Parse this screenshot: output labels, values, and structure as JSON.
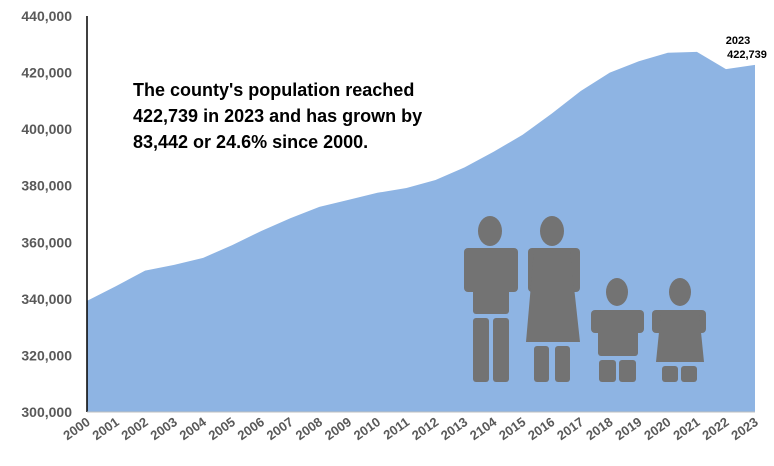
{
  "chart_data": {
    "type": "area",
    "x": [
      "2000",
      "2001",
      "2002",
      "2003",
      "2004",
      "2005",
      "2006",
      "2007",
      "2008",
      "2009",
      "2010",
      "2011",
      "2012",
      "2013",
      "2104",
      "2015",
      "2016",
      "2017",
      "2018",
      "2019",
      "2020",
      "2021",
      "2022",
      "2023"
    ],
    "values": [
      339297,
      344500,
      350000,
      352000,
      354500,
      359000,
      364000,
      368500,
      372500,
      375000,
      377500,
      379200,
      382000,
      386500,
      392000,
      398000,
      405500,
      413500,
      420000,
      424000,
      427000,
      427300,
      421200,
      422739
    ],
    "ylim": [
      300000,
      440000
    ],
    "yticks": [
      "300,000",
      "320,000",
      "340,000",
      "360,000",
      "380,000",
      "400,000",
      "420,000",
      "440,000"
    ],
    "title": "",
    "xlabel": "",
    "ylabel": "",
    "grid": false,
    "legend": "none",
    "fill_color": "#8eb4e3",
    "end_label": {
      "year": "2023",
      "value": "422,739"
    }
  },
  "callout": {
    "lines": [
      "The county's population reached",
      "422,739 in 2023 and has grown by",
      "83,442 or 24.6% since 2000."
    ]
  },
  "family_icon": {
    "name": "family-icon",
    "color": "#737373"
  }
}
